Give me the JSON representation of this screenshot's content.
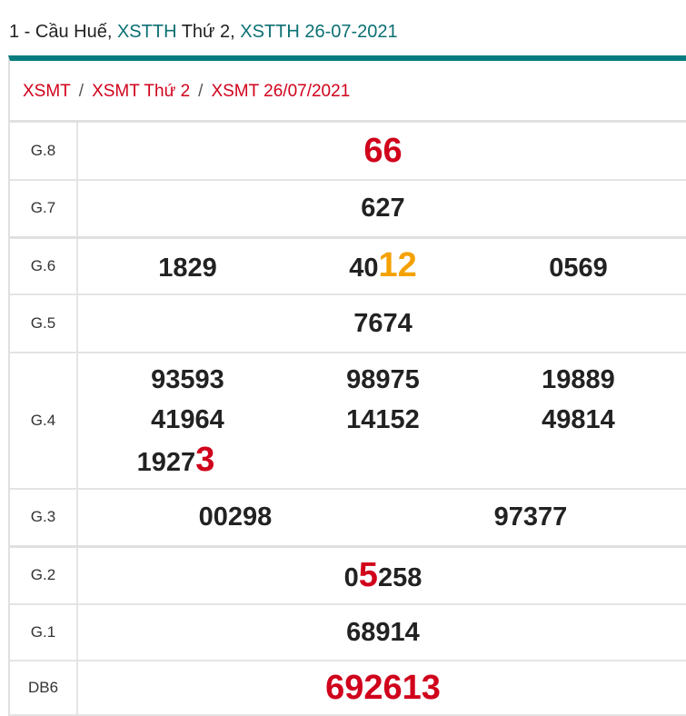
{
  "title": {
    "prefix": "1 - Cầu Huế, ",
    "link1": "XSTTH",
    "mid": " Thứ 2, ",
    "link2": "XSTTH 26-07-2021"
  },
  "breadcrumb": [
    "XSMT",
    "XSMT Thứ 2",
    "XSMT 26/07/2021"
  ],
  "breadcrumb_sep": "/",
  "colors": {
    "accent": "#077c7f",
    "red": "#d0021b",
    "orange": "#f5a100"
  },
  "prizes": [
    {
      "label": "G.8",
      "numbers": [
        {
          "main": "",
          "hl": "66",
          "hl_color": "red"
        }
      ]
    },
    {
      "label": "G.7",
      "numbers": [
        {
          "main": "627",
          "hl": ""
        }
      ]
    },
    {
      "label": "G.6",
      "numbers": [
        {
          "main": "1829",
          "hl": ""
        },
        {
          "main": "40",
          "hl": "12",
          "hl_color": "orange"
        },
        {
          "main": "0569",
          "hl": ""
        }
      ]
    },
    {
      "label": "G.5",
      "numbers": [
        {
          "main": "7674",
          "hl": ""
        }
      ]
    },
    {
      "label": "G.4",
      "numbers": [
        {
          "main": "93593",
          "hl": ""
        },
        {
          "main": "98975",
          "hl": ""
        },
        {
          "main": "19889",
          "hl": ""
        },
        {
          "main": "41964",
          "hl": ""
        },
        {
          "main": "14152",
          "hl": ""
        },
        {
          "main": "49814",
          "hl": ""
        },
        {
          "main": "1927",
          "hl": "3",
          "hl_color": "red"
        }
      ]
    },
    {
      "label": "G.3",
      "numbers": [
        {
          "main": "00298",
          "hl": ""
        },
        {
          "main": "97377",
          "hl": ""
        }
      ]
    },
    {
      "label": "G.2",
      "numbers": [
        {
          "main": "0",
          "hl": "5",
          "hl_color": "red",
          "rest": "258"
        }
      ]
    },
    {
      "label": "G.1",
      "numbers": [
        {
          "main": "68914",
          "hl": ""
        }
      ]
    },
    {
      "label": "DB6",
      "numbers": [
        {
          "main": "",
          "hl": "692613",
          "hl_color": "red"
        }
      ]
    }
  ]
}
